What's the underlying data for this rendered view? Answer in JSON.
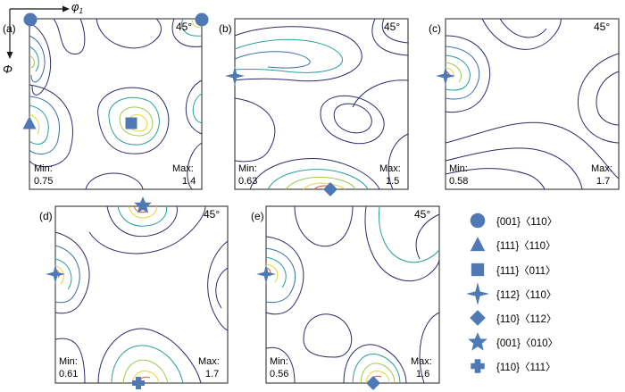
{
  "axes": {
    "phi1": "φ",
    "phi1_sub": "1",
    "Phi": "Φ"
  },
  "panels": [
    {
      "label": "(a)",
      "angle": "45°",
      "min_label": "Min:",
      "min_value": "0.75",
      "max_label": "Max:",
      "max_value": "1.4"
    },
    {
      "label": "(b)",
      "angle": "45°",
      "min_label": "Min:",
      "min_value": "0.63",
      "max_label": "Max:",
      "max_value": "1.5"
    },
    {
      "label": "(c)",
      "angle": "45°",
      "min_label": "Min:",
      "min_value": "0.58",
      "max_label": "Max:",
      "max_value": "1.7"
    },
    {
      "label": "(d)",
      "angle": "45°",
      "min_label": "Min:",
      "min_value": "0.61",
      "max_label": "Max:",
      "max_value": "1.7"
    },
    {
      "label": "(e)",
      "angle": "45°",
      "min_label": "Min:",
      "min_value": "0.56",
      "max_label": "Max:",
      "max_value": "1.6"
    }
  ],
  "legend": [
    {
      "symbol": "circle-icon",
      "text": "{001}〈110〉"
    },
    {
      "symbol": "triangle-icon",
      "text": "{111}〈110〉"
    },
    {
      "symbol": "square-icon",
      "text": "{111}〈011〉"
    },
    {
      "symbol": "four-point-star-icon",
      "text": "{112}〈110〉"
    },
    {
      "symbol": "diamond-icon",
      "text": "{110}〈112〉"
    },
    {
      "symbol": "five-point-star-icon",
      "text": "{001}〈010〉"
    },
    {
      "symbol": "cross-icon",
      "text": "{110}〈111〉"
    }
  ],
  "colors": {
    "marker": "#4f79b4",
    "contour_low": "#2c2d6b",
    "contour_mid": "#2aa198",
    "contour_high": "#e8d33a",
    "contour_peak": "#d9542b"
  }
}
